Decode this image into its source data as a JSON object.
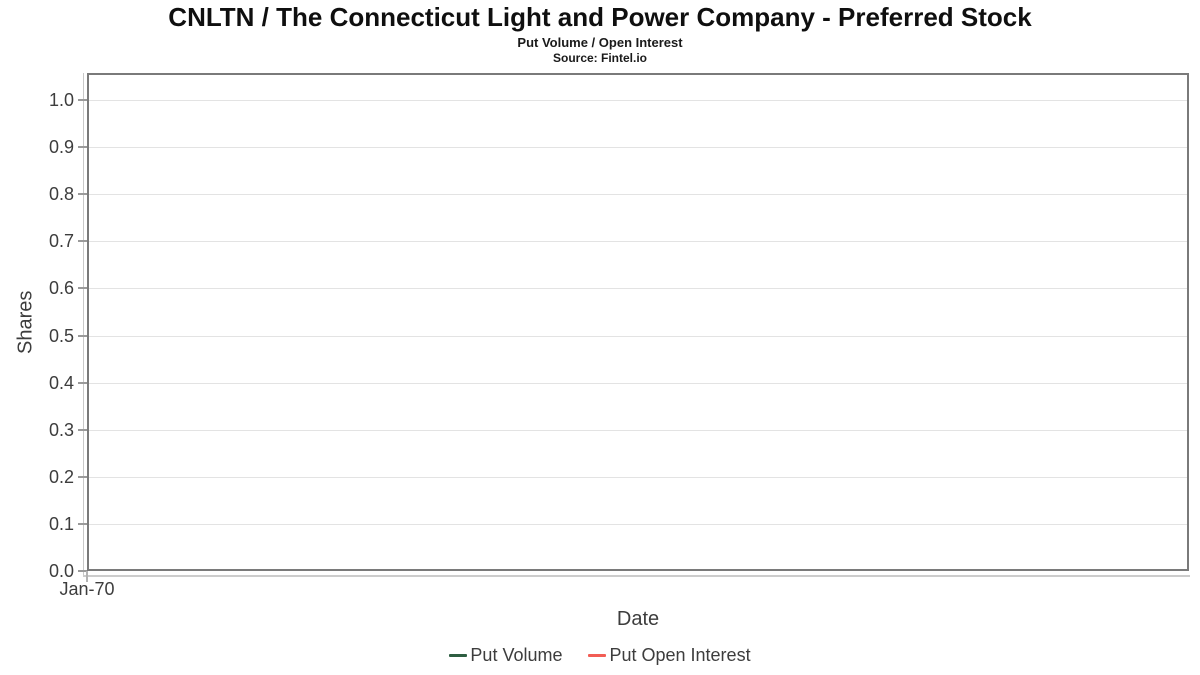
{
  "chart_data": {
    "type": "line",
    "title": "CNLTN / The Connecticut Light and Power Company - Preferred Stock",
    "subtitle": "Put Volume / Open Interest",
    "source": "Source: Fintel.io",
    "xlabel": "Date",
    "ylabel": "Shares",
    "x_tick_labels": [
      "Jan-70"
    ],
    "y_ticks": [
      0.0,
      0.1,
      0.2,
      0.3,
      0.4,
      0.5,
      0.6,
      0.7,
      0.8,
      0.9,
      1.0
    ],
    "ylim": [
      0.0,
      1.06
    ],
    "grid": true,
    "legend_position": "bottom",
    "series": [
      {
        "name": "Put Volume",
        "color": "#2e5e41",
        "x": [],
        "values": []
      },
      {
        "name": "Put Open Interest",
        "color": "#f25d55",
        "x": [],
        "values": []
      }
    ]
  }
}
